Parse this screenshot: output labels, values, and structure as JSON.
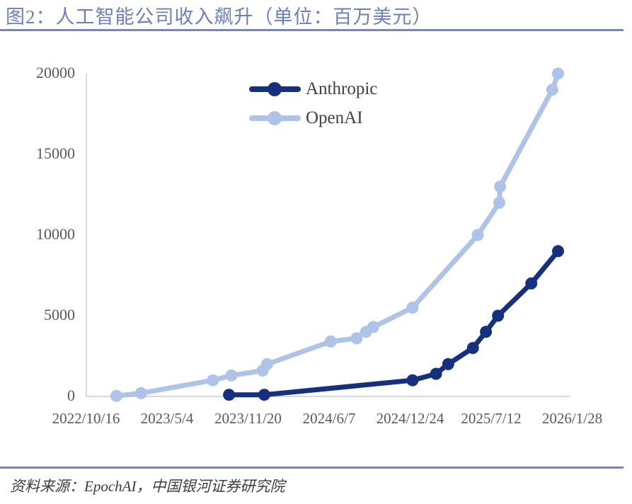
{
  "header": {
    "title": "图2：人工智能公司收入飙升（单位：百万美元）"
  },
  "footer": {
    "source": "资料来源：EpochAI，中国银河证券研究院"
  },
  "colors": {
    "title_text": "#6b7fc1",
    "rule": "#7189ba",
    "anthropic": "#14307e",
    "openai": "#aec3e8",
    "axis_line": "#d9d9d9",
    "tick_label": "#595959",
    "legend_text": "#404040"
  },
  "chart_data": {
    "type": "line",
    "title": "人工智能公司收入飙升（单位：百万美元）",
    "xlabel": "",
    "ylabel": "",
    "x_type": "date",
    "grid": false,
    "legend_position": "inside-upper-left",
    "ylim": [
      0,
      20000
    ],
    "y_ticks": [
      0,
      5000,
      10000,
      15000,
      20000
    ],
    "x_ticks": [
      "2022/10/16",
      "2023/5/4",
      "2023/11/20",
      "2024/6/7",
      "2024/12/24",
      "2025/7/12",
      "2026/1/28"
    ],
    "series": [
      {
        "name": "Anthropic",
        "color": "#14307e",
        "points": [
          [
            "2023/10/4",
            100
          ],
          [
            "2023/12/30",
            100
          ],
          [
            "2024/12/30",
            1000
          ],
          [
            "2025/2/26",
            1400
          ],
          [
            "2025/3/28",
            2000
          ],
          [
            "2025/5/28",
            3000
          ],
          [
            "2025/6/29",
            4000
          ],
          [
            "2025/7/29",
            5000
          ],
          [
            "2025/10/19",
            7000
          ],
          [
            "2025/12/24",
            9000
          ]
        ]
      },
      {
        "name": "OpenAI",
        "color": "#aec3e8",
        "points": [
          [
            "2022/12/30",
            30
          ],
          [
            "2023/3/1",
            200
          ],
          [
            "2023/8/25",
            1000
          ],
          [
            "2023/10/10",
            1300
          ],
          [
            "2023/12/26",
            1600
          ],
          [
            "2024/1/6",
            2000
          ],
          [
            "2024/6/11",
            3400
          ],
          [
            "2024/8/14",
            3600
          ],
          [
            "2024/9/6",
            4000
          ],
          [
            "2024/9/24",
            4300
          ],
          [
            "2024/12/30",
            5500
          ],
          [
            "2025/6/9",
            10000
          ],
          [
            "2025/8/1",
            12000
          ],
          [
            "2025/8/3",
            13000
          ],
          [
            "2025/12/10",
            19000
          ],
          [
            "2025/12/24",
            20000
          ]
        ]
      }
    ]
  }
}
